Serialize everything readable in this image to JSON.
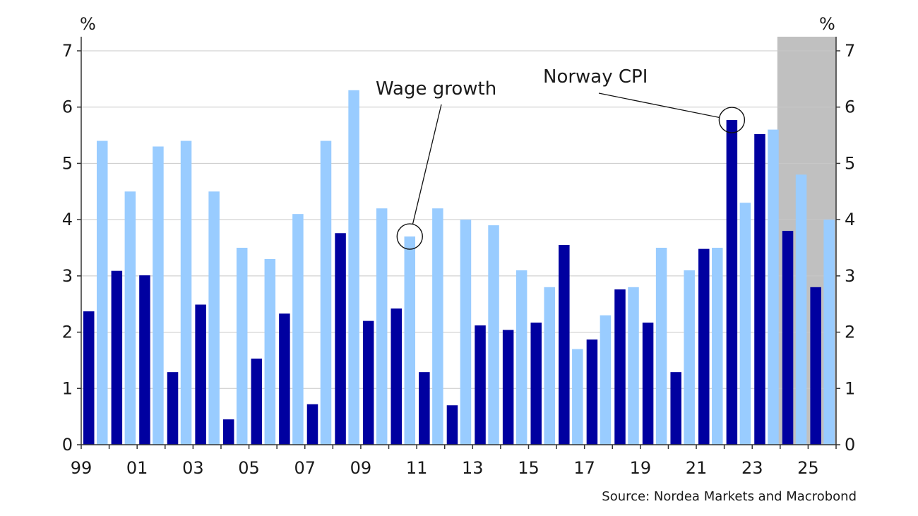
{
  "chart_data": {
    "type": "bar",
    "categories": [
      "99",
      "00",
      "01",
      "02",
      "03",
      "04",
      "05",
      "06",
      "07",
      "08",
      "09",
      "10",
      "11",
      "12",
      "13",
      "14",
      "15",
      "16",
      "17",
      "18",
      "19",
      "20",
      "21",
      "22",
      "23",
      "24",
      "25"
    ],
    "xtick_labels": [
      "99",
      "01",
      "03",
      "05",
      "07",
      "09",
      "11",
      "13",
      "15",
      "17",
      "19",
      "21",
      "23",
      "25"
    ],
    "series": [
      {
        "name": "Norway CPI",
        "color": "#0000a0",
        "values": [
          2.37,
          3.09,
          3.01,
          1.29,
          2.49,
          0.45,
          1.53,
          2.33,
          0.72,
          3.76,
          2.2,
          2.42,
          1.29,
          0.7,
          2.12,
          2.04,
          2.17,
          3.55,
          1.87,
          2.76,
          2.17,
          1.29,
          3.48,
          5.77,
          5.52,
          3.8,
          2.8
        ]
      },
      {
        "name": "Wage growth",
        "color": "#99ccff",
        "values": [
          5.4,
          4.5,
          5.3,
          5.4,
          4.5,
          3.5,
          3.3,
          4.1,
          5.4,
          6.3,
          4.2,
          3.7,
          4.2,
          4.0,
          3.9,
          3.1,
          2.8,
          1.7,
          2.3,
          2.8,
          3.5,
          3.1,
          3.5,
          4.3,
          5.6,
          4.8,
          4.0
        ]
      }
    ],
    "ylim": [
      0,
      7
    ],
    "yticks": [
      0,
      1,
      2,
      3,
      4,
      5,
      6,
      7
    ],
    "ylabel_left": "%",
    "ylabel_right": "%",
    "grid": true,
    "forecast_shading": {
      "from": "24",
      "to": "25",
      "color": "#c0c0c0"
    },
    "annotations": [
      {
        "text": "Wage growth",
        "series": "Wage growth",
        "category": "10"
      },
      {
        "text": "Norway CPI",
        "series": "Norway CPI",
        "category": "22"
      }
    ],
    "source": "Source: Nordea Markets and Macrobond"
  }
}
